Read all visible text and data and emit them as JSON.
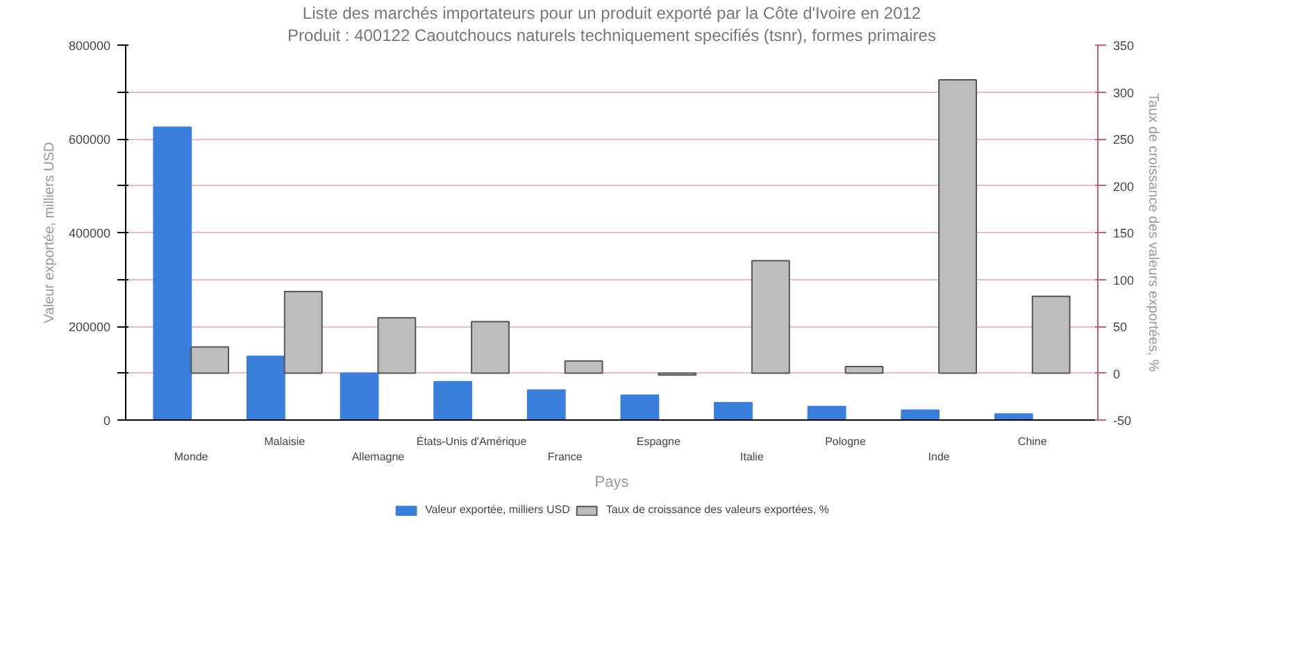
{
  "chart_data": {
    "type": "bar",
    "title": "Liste des marchés importateurs pour un produit exporté par la Côte d'Ivoire en 2012",
    "subtitle": "Produit : 400122 Caoutchoucs naturels techniquement specifiés (tsnr), formes primaires",
    "xlabel": "Pays",
    "ylabel": "Valeur exportée, milliers USD",
    "y2label": "Taux de croissance des valeurs exportées, %",
    "categories": [
      "Monde",
      "Malaisie",
      "Allemagne",
      "États-Unis d'Amérique",
      "France",
      "Espagne",
      "Italie",
      "Pologne",
      "Inde",
      "Chine"
    ],
    "series": [
      {
        "name": "Valeur exportée, milliers USD",
        "color": "#3a7fdc",
        "values": [
          625000,
          136000,
          100000,
          82000,
          64000,
          53000,
          37000,
          29000,
          21000,
          13000
        ]
      },
      {
        "name": "Taux de croissance des valeurs exportées, %",
        "color": "#bdbdbd",
        "axis": "y2",
        "values": [
          28,
          87,
          59,
          55,
          13,
          -2,
          120,
          7,
          313,
          82
        ]
      }
    ],
    "ylim": [
      0,
      800000
    ],
    "yticks": [
      0,
      {
        "value": 100000,
        "label": null
      },
      200000,
      {
        "value": 300000,
        "label": null
      },
      400000,
      {
        "value": 500000,
        "label": null
      },
      600000,
      {
        "value": 700000,
        "label": null
      },
      800000
    ],
    "y2lim": [
      -50,
      350
    ],
    "y2ticks": [
      -50,
      0,
      50,
      100,
      150,
      200,
      250,
      300,
      350
    ],
    "grid": "y",
    "legend": "bottom"
  }
}
